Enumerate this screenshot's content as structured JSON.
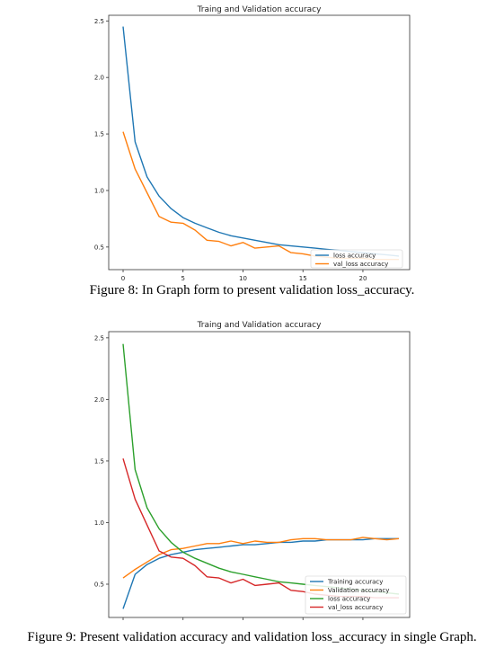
{
  "chart_data": [
    {
      "type": "line",
      "title": "Traing and Validation accuracy",
      "xlabel": "",
      "ylabel": "",
      "xlim": [
        -1.2,
        23.9
      ],
      "ylim": [
        0.3,
        2.55
      ],
      "xticks": [
        0,
        5,
        10,
        15,
        20
      ],
      "yticks": [
        0.5,
        1.0,
        1.5,
        2.0,
        2.5
      ],
      "legend": "bottom-right",
      "grid": false,
      "series": [
        {
          "name": "loss accuracy",
          "color": "#1f77b4",
          "x": [
            0,
            1,
            2,
            3,
            4,
            5,
            6,
            7,
            8,
            9,
            10,
            11,
            12,
            13,
            14,
            15,
            16,
            17,
            18,
            19,
            20,
            21,
            22,
            23
          ],
          "values": [
            2.45,
            1.43,
            1.12,
            0.95,
            0.84,
            0.76,
            0.71,
            0.67,
            0.63,
            0.6,
            0.58,
            0.56,
            0.54,
            0.52,
            0.51,
            0.5,
            0.49,
            0.48,
            0.47,
            0.46,
            0.45,
            0.44,
            0.43,
            0.42
          ]
        },
        {
          "name": "val_loss accuracy",
          "color": "#ff7f0e",
          "x": [
            0,
            1,
            2,
            3,
            4,
            5,
            6,
            7,
            8,
            9,
            10,
            11,
            12,
            13,
            14,
            15,
            16,
            17,
            18,
            19,
            20,
            21,
            22,
            23
          ],
          "values": [
            1.52,
            1.19,
            0.98,
            0.77,
            0.72,
            0.71,
            0.65,
            0.56,
            0.55,
            0.51,
            0.54,
            0.49,
            0.5,
            0.51,
            0.45,
            0.44,
            0.42,
            0.41,
            0.4,
            0.4,
            0.4,
            0.39,
            0.39,
            0.39
          ]
        }
      ]
    },
    {
      "type": "line",
      "title": "Traing and Validation accuracy",
      "xlabel": "",
      "ylabel": "",
      "xlim": [
        -1.2,
        23.9
      ],
      "ylim": [
        0.23,
        2.55
      ],
      "xticks": [
        0,
        5,
        10,
        15,
        20
      ],
      "yticks": [
        0.5,
        1.0,
        1.5,
        2.0,
        2.5
      ],
      "legend": "bottom-right",
      "grid": false,
      "series": [
        {
          "name": "Training accuracy",
          "color": "#1f77b4",
          "x": [
            0,
            1,
            2,
            3,
            4,
            5,
            6,
            7,
            8,
            9,
            10,
            11,
            12,
            13,
            14,
            15,
            16,
            17,
            18,
            19,
            20,
            21,
            22,
            23
          ],
          "values": [
            0.3,
            0.58,
            0.66,
            0.71,
            0.74,
            0.76,
            0.78,
            0.79,
            0.8,
            0.81,
            0.82,
            0.82,
            0.83,
            0.84,
            0.84,
            0.85,
            0.85,
            0.86,
            0.86,
            0.86,
            0.86,
            0.87,
            0.87,
            0.87
          ]
        },
        {
          "name": "Validation accuracy",
          "color": "#ff7f0e",
          "x": [
            0,
            1,
            2,
            3,
            4,
            5,
            6,
            7,
            8,
            9,
            10,
            11,
            12,
            13,
            14,
            15,
            16,
            17,
            18,
            19,
            20,
            21,
            22,
            23
          ],
          "values": [
            0.55,
            0.62,
            0.68,
            0.74,
            0.78,
            0.79,
            0.81,
            0.83,
            0.83,
            0.85,
            0.83,
            0.85,
            0.84,
            0.84,
            0.86,
            0.87,
            0.87,
            0.86,
            0.86,
            0.86,
            0.88,
            0.87,
            0.86,
            0.87
          ]
        },
        {
          "name": "loss accuracy",
          "color": "#2ca02c",
          "x": [
            0,
            1,
            2,
            3,
            4,
            5,
            6,
            7,
            8,
            9,
            10,
            11,
            12,
            13,
            14,
            15,
            16,
            17,
            18,
            19,
            20,
            21,
            22,
            23
          ],
          "values": [
            2.45,
            1.43,
            1.12,
            0.95,
            0.84,
            0.76,
            0.71,
            0.67,
            0.63,
            0.6,
            0.58,
            0.56,
            0.54,
            0.52,
            0.51,
            0.5,
            0.49,
            0.48,
            0.47,
            0.46,
            0.45,
            0.44,
            0.43,
            0.42
          ]
        },
        {
          "name": "val_loss accuracy",
          "color": "#d62728",
          "x": [
            0,
            1,
            2,
            3,
            4,
            5,
            6,
            7,
            8,
            9,
            10,
            11,
            12,
            13,
            14,
            15,
            16,
            17,
            18,
            19,
            20,
            21,
            22,
            23
          ],
          "values": [
            1.52,
            1.19,
            0.98,
            0.77,
            0.72,
            0.71,
            0.65,
            0.56,
            0.55,
            0.51,
            0.54,
            0.49,
            0.5,
            0.51,
            0.45,
            0.44,
            0.42,
            0.41,
            0.4,
            0.4,
            0.4,
            0.39,
            0.39,
            0.39
          ]
        }
      ]
    }
  ],
  "captions": [
    "Figure 8: In Graph form to present validation loss_accuracy.",
    "Figure 9: Present validation accuracy and validation loss_accuracy in single Graph."
  ]
}
